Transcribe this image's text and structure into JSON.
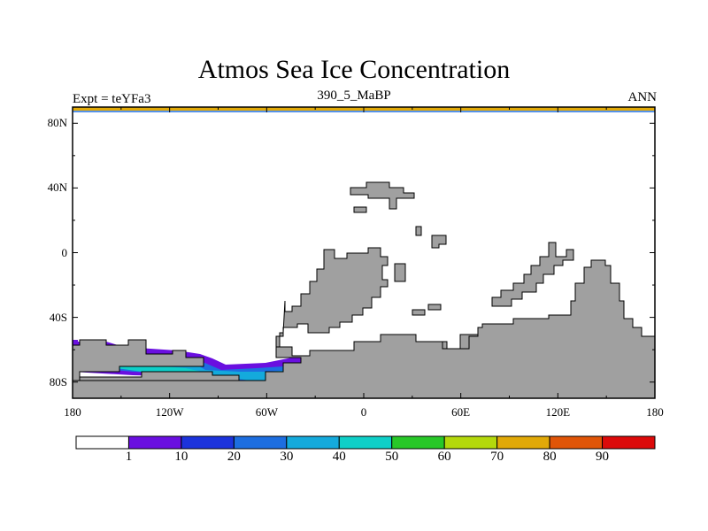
{
  "title": "Atmos Sea Ice Concentration",
  "subtitle_left": "Expt = teYFa3",
  "subtitle_center": "390_5_MaBP",
  "subtitle_right": "ANN",
  "y_ticks": [
    {
      "label": "80N",
      "lat": 80
    },
    {
      "label": "40N",
      "lat": 40
    },
    {
      "label": "0",
      "lat": 0
    },
    {
      "label": "40S",
      "lat": -40
    },
    {
      "label": "80S",
      "lat": -80
    }
  ],
  "x_ticks": [
    {
      "label": "180",
      "lon": -180
    },
    {
      "label": "120W",
      "lon": -120
    },
    {
      "label": "60W",
      "lon": -60
    },
    {
      "label": "0",
      "lon": 0
    },
    {
      "label": "60E",
      "lon": 60
    },
    {
      "label": "120E",
      "lon": 120
    },
    {
      "label": "180",
      "lon": 180
    }
  ],
  "colorbar": {
    "colors": [
      "#ffffff",
      "#6a0fe0",
      "#1c33dc",
      "#1d6ee0",
      "#14aadc",
      "#0ecfc8",
      "#28c828",
      "#b4d80c",
      "#e1a908",
      "#e05508",
      "#dc0a0a"
    ],
    "labels": [
      "1",
      "10",
      "20",
      "30",
      "40",
      "50",
      "60",
      "70",
      "80",
      "90"
    ]
  },
  "colors": {
    "land": "#a0a0a0",
    "ice_10": "#6a0fe0",
    "ice_30": "#1d6ee0",
    "ice_40": "#14aadc",
    "ice_50": "#0ecfc8",
    "arctic_strip": "#e1a908",
    "arctic_line": "#1d6ee0"
  }
}
